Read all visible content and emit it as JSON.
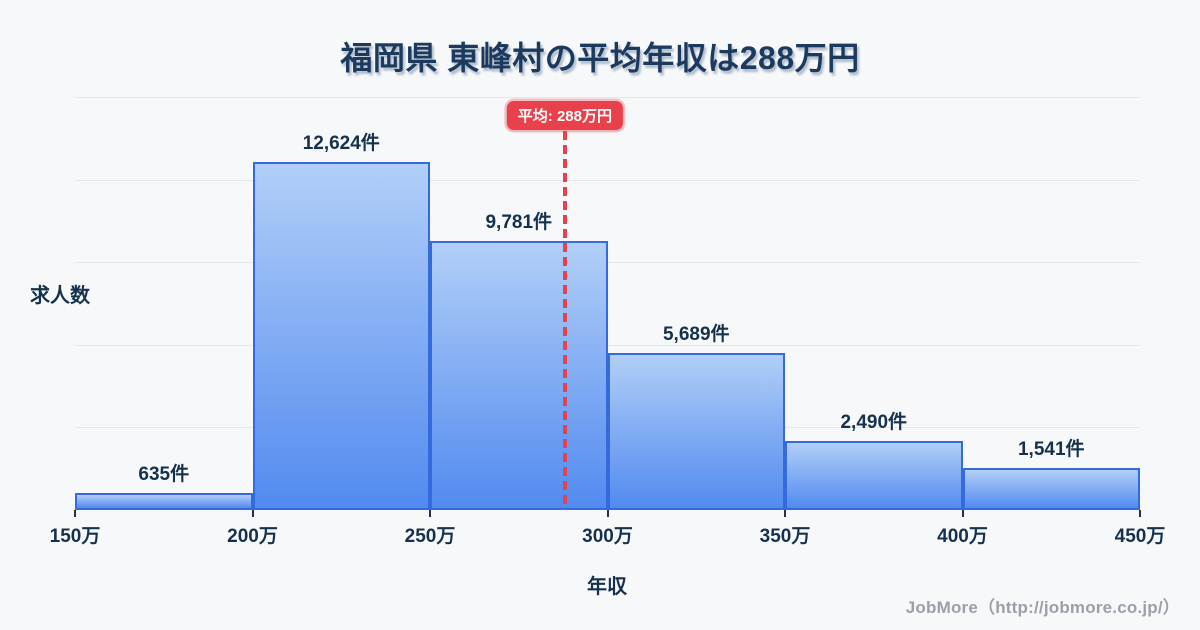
{
  "title": "福岡県 東峰村の平均年収は288万円",
  "footer": {
    "text": "JobMore（http://jobmore.co.jp/）"
  },
  "chart_data": {
    "type": "bar",
    "title": "福岡県 東峰村の平均年収は288万円",
    "xlabel": "年収",
    "ylabel": "求人数",
    "categories": [
      "150万-200万",
      "200万-250万",
      "250万-300万",
      "300万-350万",
      "350万-400万",
      "400万-450万"
    ],
    "values": [
      635,
      12624,
      9781,
      5689,
      2490,
      1541
    ],
    "value_labels": [
      "635件",
      "12,624件",
      "9,781件",
      "5,689件",
      "2,490件",
      "1,541件"
    ],
    "x_tick_labels": [
      "150万",
      "200万",
      "250万",
      "300万",
      "350万",
      "400万",
      "450万"
    ],
    "x_range": [
      150,
      450
    ],
    "ylim": [
      0,
      15000
    ],
    "gridline_values": [
      3000,
      6000,
      9000,
      12000,
      15000
    ],
    "grid": "horizontal-only",
    "legend": "none",
    "average": {
      "value": 288,
      "label": "平均: 288万円"
    },
    "colors": {
      "bar_fill_top": "#aecdf7",
      "bar_fill_bottom": "#4a85f0",
      "bar_border": "#2a63da",
      "accent_red": "#e8414c",
      "text_dark": "#16314e",
      "title_navy": "#1c3a5e",
      "background": "#f7f8fa",
      "gridline": "#e4e7ed",
      "footer_gray": "#9ba0a8"
    }
  }
}
